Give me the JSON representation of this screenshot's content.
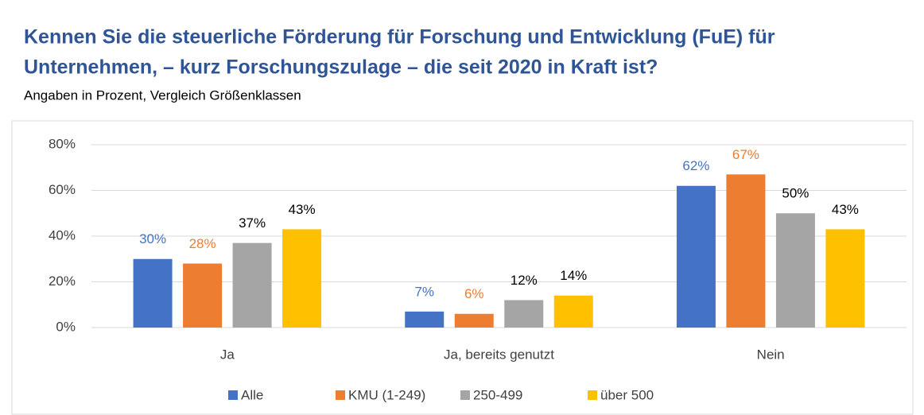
{
  "chart_data": {
    "type": "bar",
    "title": [
      "Kennen Sie die steuerliche Förderung für Forschung und Entwicklung (FuE) für",
      "Unternehmen, – kurz Forschungszulage – die seit 2020 in Kraft ist?"
    ],
    "subtitle": "Angaben in Prozent, Vergleich Größenklassen",
    "categories": [
      "Ja",
      "Ja, bereits genutzt",
      "Nein"
    ],
    "series": [
      {
        "name": "Alle",
        "color": "#4472c4",
        "label_color": "#4472c4",
        "values": [
          30,
          7,
          62
        ],
        "value_labels": [
          "30%",
          "7%",
          "62%"
        ]
      },
      {
        "name": "KMU (1-249)",
        "color": "#ed7d31",
        "label_color": "#ed7d31",
        "values": [
          28,
          6,
          67
        ],
        "value_labels": [
          "28%",
          "6%",
          "67%"
        ]
      },
      {
        "name": "250-499",
        "color": "#a5a5a5",
        "label_color": "#000000",
        "values": [
          37,
          12,
          50
        ],
        "value_labels": [
          "37%",
          "12%",
          "50%"
        ]
      },
      {
        "name": "über 500",
        "color": "#ffc000",
        "label_color": "#000000",
        "values": [
          43,
          14,
          43
        ],
        "value_labels": [
          "43%",
          "14%",
          "43%"
        ]
      }
    ],
    "ylim": [
      0,
      80
    ],
    "yticks": [
      {
        "value": 0,
        "label": "0%"
      },
      {
        "value": 20,
        "label": "20%"
      },
      {
        "value": 40,
        "label": "40%"
      },
      {
        "value": 60,
        "label": "60%"
      },
      {
        "value": 80,
        "label": "80%"
      }
    ],
    "grid": true,
    "legend": "bottom"
  }
}
